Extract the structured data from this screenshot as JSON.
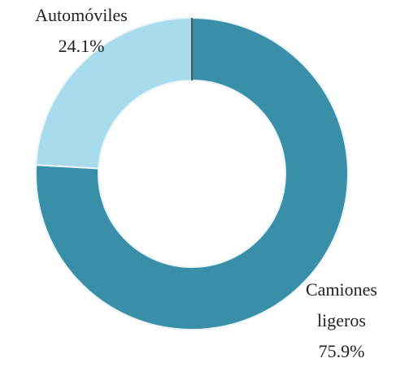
{
  "chart_data": {
    "type": "donut",
    "categories": [
      "Camiones ligeros",
      "Automóviles"
    ],
    "values": [
      75.9,
      24.1
    ],
    "value_labels": [
      "75.9%",
      "24.1%"
    ],
    "colors": [
      "#3a8fa8",
      "#a8dcec"
    ]
  }
}
